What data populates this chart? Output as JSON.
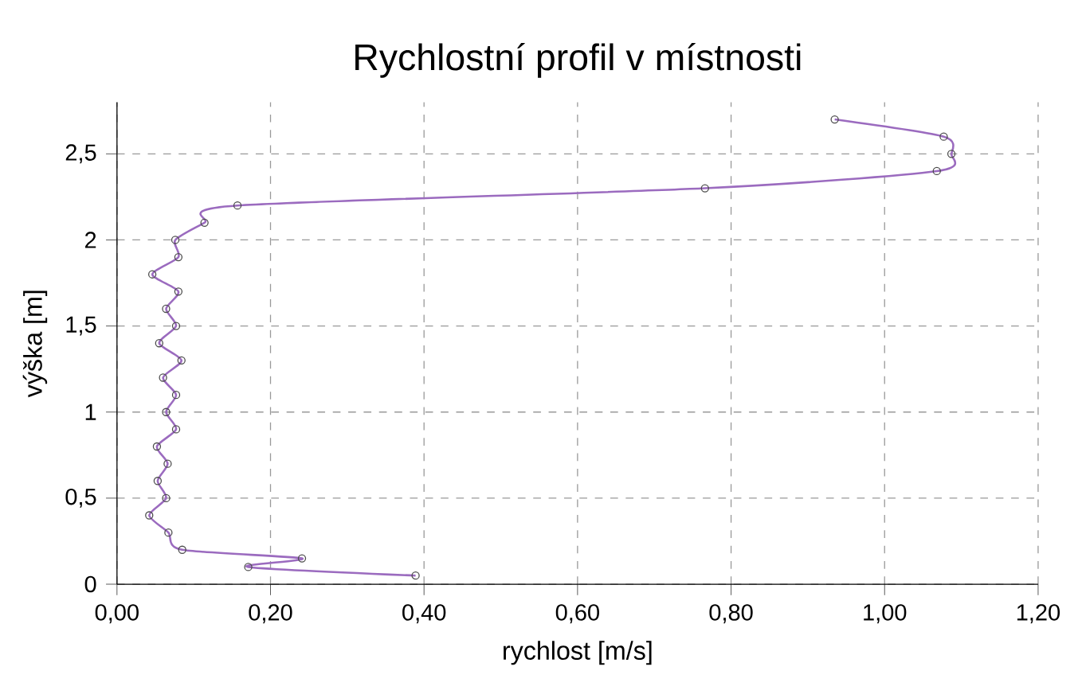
{
  "chart_data": {
    "type": "line",
    "title": "Rychlostní profil v místnosti",
    "xlabel": "rychlost [m/s]",
    "ylabel": "výška [m]",
    "series": [
      {
        "color": "#9b6bbf",
        "x": [
          0.389,
          0.171,
          0.241,
          0.085,
          0.067,
          0.042,
          0.064,
          0.053,
          0.066,
          0.052,
          0.077,
          0.064,
          0.077,
          0.06,
          0.084,
          0.055,
          0.077,
          0.064,
          0.08,
          0.046,
          0.08,
          0.076,
          0.114,
          0.157,
          0.766,
          1.068,
          1.087,
          1.077,
          0.935
        ],
        "values": [
          0.05,
          0.1,
          0.15,
          0.2,
          0.3,
          0.4,
          0.5,
          0.6,
          0.7,
          0.8,
          0.9,
          1.0,
          1.1,
          1.2,
          1.3,
          1.4,
          1.5,
          1.6,
          1.7,
          1.8,
          1.9,
          2.0,
          2.1,
          2.2,
          2.3,
          2.4,
          2.5,
          2.6,
          2.7
        ]
      }
    ],
    "xlim": [
      0,
      1.2
    ],
    "ylim": [
      0,
      2.8
    ],
    "xticks": [
      {
        "value": 0,
        "label": "0,00"
      },
      {
        "value": 0.2,
        "label": "0,20"
      },
      {
        "value": 0.4,
        "label": "0,40"
      },
      {
        "value": 0.6,
        "label": "0,60"
      },
      {
        "value": 0.8,
        "label": "0,80"
      },
      {
        "value": 1.0,
        "label": "1,00"
      },
      {
        "value": 1.2,
        "label": "1,20"
      }
    ],
    "yticks": [
      0,
      {
        "value": 0.5,
        "label": "0,5"
      },
      1,
      {
        "value": 1.5,
        "label": "1,5"
      },
      2,
      {
        "value": 2.5,
        "label": "2,5"
      }
    ],
    "grid": true,
    "marker": "circle",
    "line_style": "solid"
  }
}
